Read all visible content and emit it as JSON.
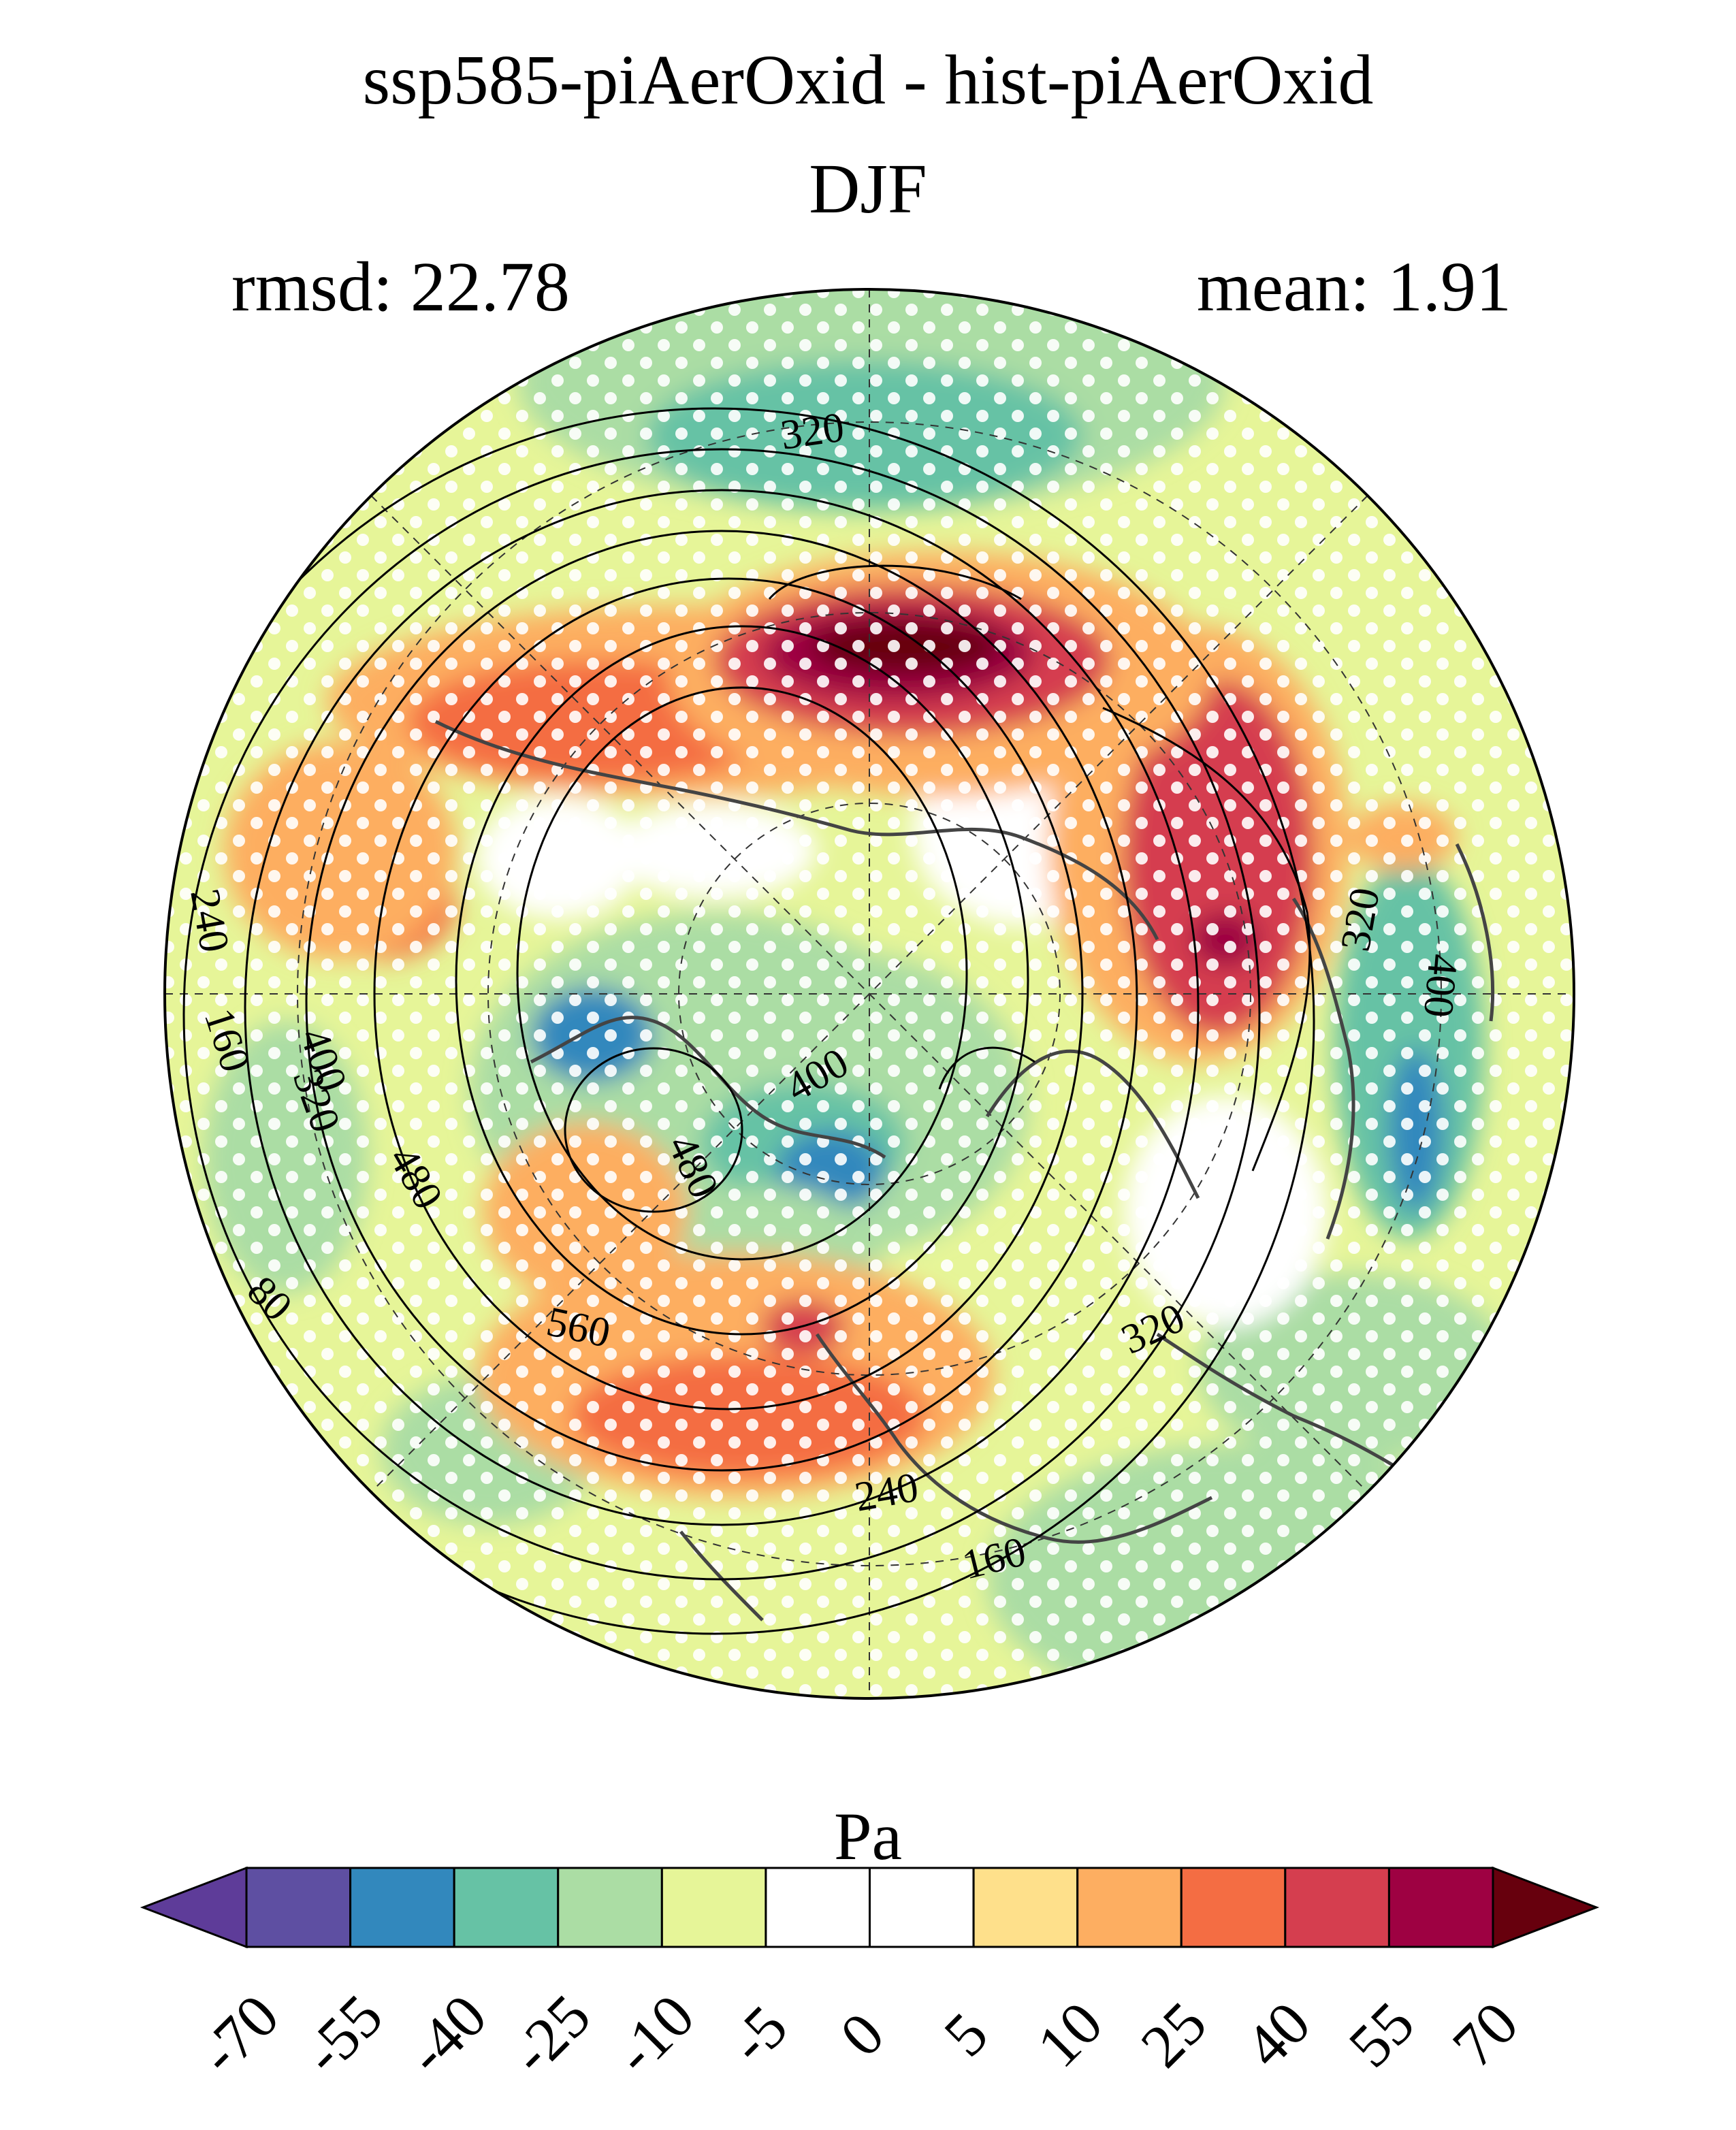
{
  "title": "ssp585-piAerOxid - hist-piAerOxid",
  "season": "DJF",
  "rmsd_label": "rmsd: 22.78",
  "mean_label": "mean: 1.91",
  "colorbar": {
    "unit": "Pa",
    "ticks": [
      "-70",
      "-55",
      "-40",
      "-25",
      "-10",
      "-5",
      "0",
      "5",
      "10",
      "25",
      "40",
      "55",
      "70"
    ],
    "colors": [
      "#5e3c99",
      "#5e4fa2",
      "#3288bd",
      "#66c2a5",
      "#abdda4",
      "#e6f598",
      "#ffffff",
      "#ffffff",
      "#fee08b",
      "#fdae61",
      "#f46d43",
      "#d53e4f",
      "#9e0142",
      "#67000d"
    ]
  },
  "contour_labels": [
    "320",
    "240",
    "160",
    "400",
    "320",
    "480",
    "80",
    "560",
    "480",
    "400",
    "320",
    "240",
    "160",
    "320",
    "400"
  ],
  "contour_levels_legend": [
    "80",
    "160",
    "240",
    "320",
    "400",
    "480",
    "560"
  ]
}
